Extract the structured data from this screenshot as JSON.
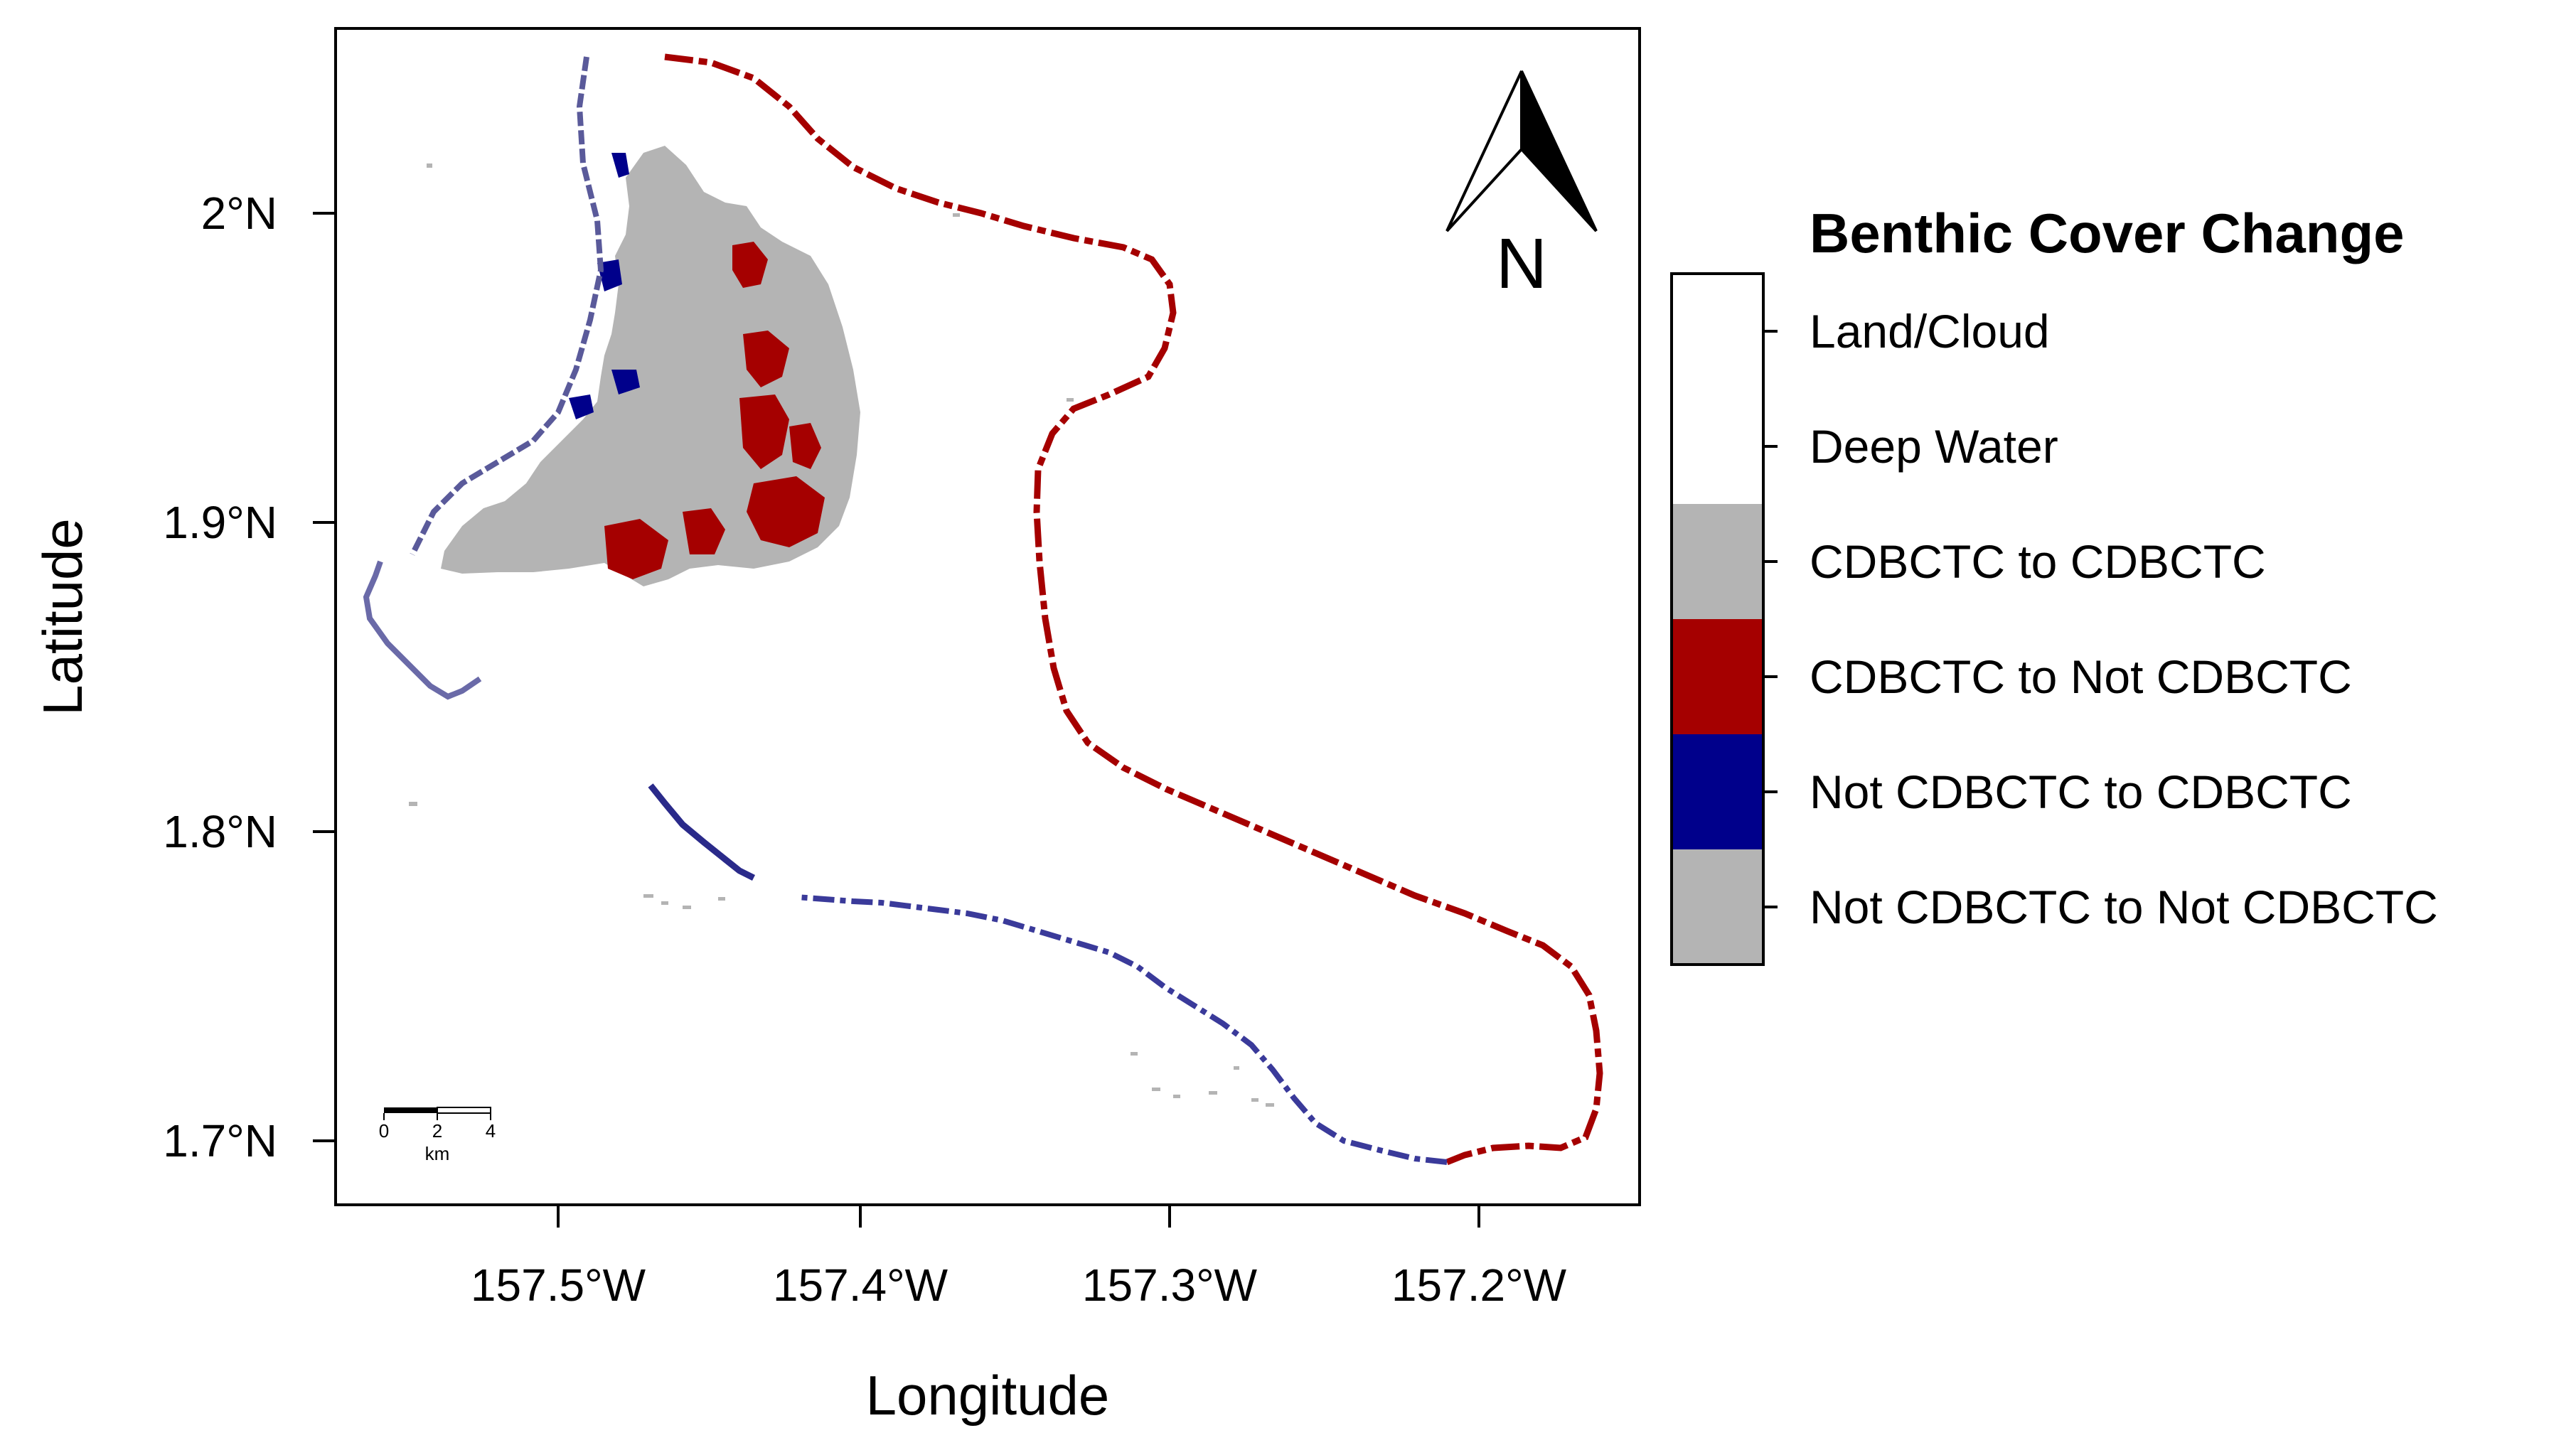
{
  "map": {
    "x_axis": {
      "title": "Longitude",
      "ticks": [
        "157.5°W",
        "157.4°W",
        "157.3°W",
        "157.2°W"
      ]
    },
    "y_axis": {
      "title": "Latitude",
      "ticks": [
        "2°N",
        "1.9°N",
        "1.8°N",
        "1.7°N"
      ]
    },
    "north_arrow": {
      "label": "N",
      "icon": "north-arrow-icon"
    },
    "scale_bar": {
      "ticks": [
        "0",
        "2",
        "4"
      ],
      "unit": "km"
    }
  },
  "legend": {
    "title": "Benthic Cover Change",
    "items": [
      {
        "label": "Land/Cloud",
        "color": "#ffffff"
      },
      {
        "label": "Deep Water",
        "color": "#ffffff"
      },
      {
        "label": "CDBCTC to CDBCTC",
        "color": "#b4b4b4"
      },
      {
        "label": "CDBCTC to Not CDBCTC",
        "color": "#a50000"
      },
      {
        "label": "Not CDBCTC to CDBCTC",
        "color": "#00008b"
      },
      {
        "label": "Not CDBCTC to Not CDBCTC",
        "color": "#b4b4b4"
      }
    ]
  },
  "colors": {
    "gray": "#b4b4b4",
    "red": "#a50000",
    "blue": "#00008b"
  }
}
